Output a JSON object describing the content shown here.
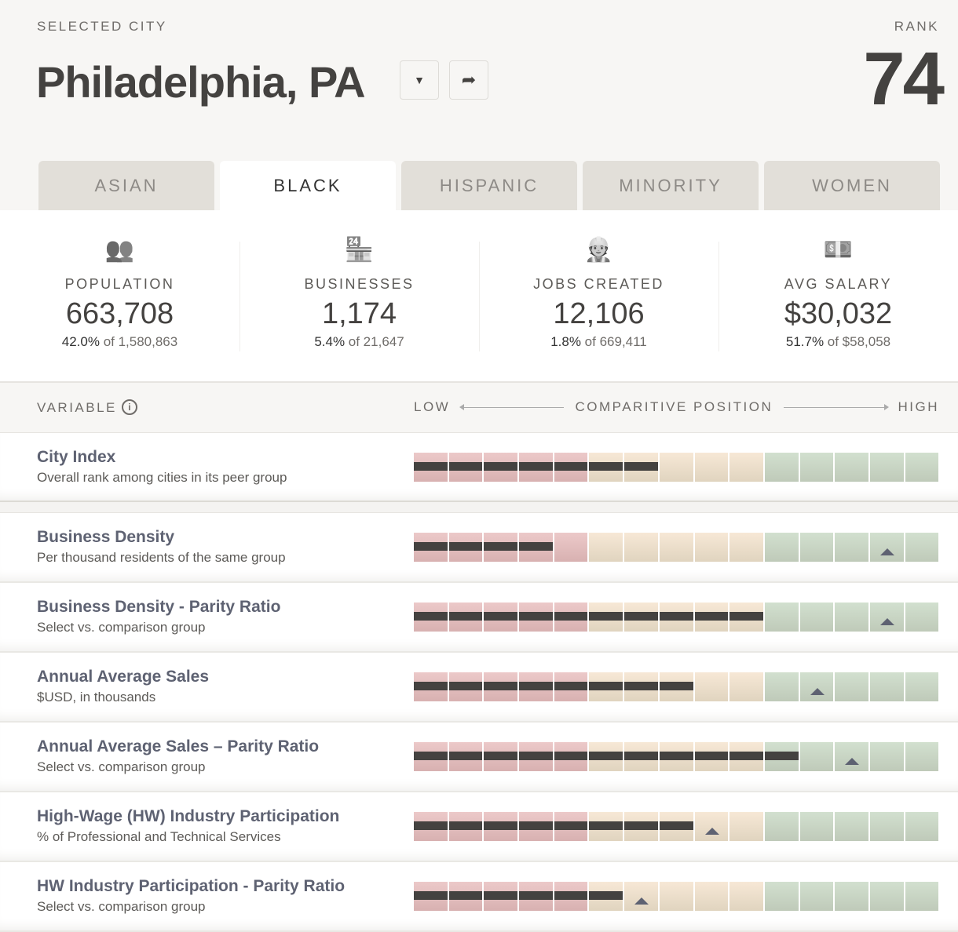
{
  "header": {
    "selected_label": "SELECTED CITY",
    "city": "Philadelphia, PA",
    "rank_label": "RANK",
    "rank": "74"
  },
  "tabs": [
    "ASIAN",
    "BLACK",
    "HISPANIC",
    "MINORITY",
    "WOMEN"
  ],
  "active_tab": 1,
  "stats": [
    {
      "icon": "people-icon",
      "label": "POPULATION",
      "value": "663,708",
      "pct": "42.0%",
      "of": " of 1,580,863"
    },
    {
      "icon": "storefront-icon",
      "label": "BUSINESSES",
      "value": "1,174",
      "pct": "5.4%",
      "of": " of 21,647"
    },
    {
      "icon": "worker-icon",
      "label": "JOBS CREATED",
      "value": "12,106",
      "pct": "1.8%",
      "of": " of 669,411"
    },
    {
      "icon": "money-icon",
      "label": "AVG SALARY",
      "value": "$30,032",
      "pct": "51.7%",
      "of": " of $58,058"
    }
  ],
  "variables": {
    "label": "VARIABLE",
    "low": "LOW",
    "position": "COMPARITIVE POSITION",
    "high": "HIGH"
  },
  "rows": [
    {
      "title": "City Index",
      "subtitle": "Overall rank among cities in its peer group",
      "filled": 7,
      "marker": null
    },
    {
      "title": "Business Density",
      "subtitle": "Per thousand residents of the same group",
      "filled": 4,
      "marker": 13
    },
    {
      "title": "Business Density - Parity Ratio",
      "subtitle": "Select vs. comparison group",
      "filled": 10,
      "marker": 13
    },
    {
      "title": "Annual Average Sales",
      "subtitle": "$USD, in thousands",
      "filled": 8,
      "marker": 11
    },
    {
      "title": "Annual Average Sales – Parity Ratio",
      "subtitle": "Select vs. comparison group",
      "filled": 11,
      "marker": 12
    },
    {
      "title": "High-Wage (HW) Industry Participation",
      "subtitle": "% of Professional and Technical Services",
      "filled": 8,
      "marker": 8
    },
    {
      "title": "HW Industry Participation - Parity Ratio",
      "subtitle": "Select vs. comparison group",
      "filled": 6,
      "marker": 6
    }
  ],
  "scale_segments": {
    "total": 15,
    "low": 5,
    "mid": 5,
    "high": 5
  },
  "colors": {
    "low": "#d8b1b1",
    "mid": "#e0d4bf",
    "high": "#bfcab9",
    "bar": "#444240",
    "marker": "#5e6272"
  }
}
